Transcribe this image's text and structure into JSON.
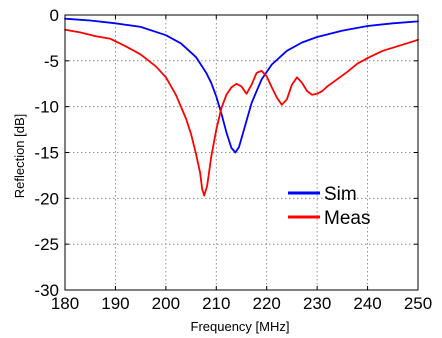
{
  "chart_data": {
    "type": "line",
    "title": "",
    "xlabel": "Frequency [MHz]",
    "ylabel": "Reflection [dB]",
    "xlim": [
      180,
      250
    ],
    "ylim": [
      -30,
      0
    ],
    "xticks": [
      180,
      190,
      200,
      210,
      220,
      230,
      240,
      250
    ],
    "yticks": [
      0,
      -5,
      -10,
      -15,
      -20,
      -25,
      -30
    ],
    "grid": true,
    "legend_position": "lower-right",
    "series": [
      {
        "name": "Sim",
        "color": "#0000ff",
        "x": [
          180,
          185,
          190,
          195,
          200,
          203,
          206,
          208,
          209,
          210,
          211,
          212,
          213,
          213.8,
          214.5,
          215.5,
          217,
          219,
          221,
          224,
          227,
          230,
          235,
          240,
          245,
          250
        ],
        "y": [
          -0.4,
          -0.6,
          -0.9,
          -1.3,
          -2.2,
          -3.1,
          -4.6,
          -6.3,
          -7.4,
          -8.9,
          -10.7,
          -12.8,
          -14.5,
          -15.0,
          -14.4,
          -12.5,
          -9.6,
          -7.0,
          -5.4,
          -3.9,
          -3.0,
          -2.4,
          -1.7,
          -1.2,
          -0.9,
          -0.7
        ]
      },
      {
        "name": "Meas",
        "color": "#ff0000",
        "x": [
          180,
          183,
          186,
          189,
          192,
          195,
          198,
          200,
          202,
          204,
          205,
          206,
          206.8,
          207.2,
          207.6,
          208.2,
          209,
          210,
          211,
          212,
          213,
          214,
          215,
          216,
          217,
          218,
          219,
          220,
          221,
          222,
          223,
          224,
          225,
          226,
          227,
          228,
          229,
          230,
          231,
          232,
          233,
          234,
          236,
          238,
          240,
          243,
          246,
          250
        ],
        "y": [
          -1.6,
          -1.9,
          -2.3,
          -2.6,
          -3.4,
          -4.3,
          -5.6,
          -6.8,
          -8.7,
          -11.3,
          -13.0,
          -15.2,
          -17.2,
          -19.0,
          -19.7,
          -18.6,
          -15.5,
          -12.5,
          -10.2,
          -8.7,
          -7.9,
          -7.5,
          -7.8,
          -8.6,
          -7.6,
          -6.3,
          -6.1,
          -6.7,
          -7.9,
          -9.0,
          -9.8,
          -9.2,
          -7.6,
          -6.8,
          -7.4,
          -8.3,
          -8.7,
          -8.6,
          -8.3,
          -7.8,
          -7.4,
          -7.0,
          -6.2,
          -5.3,
          -4.7,
          -3.9,
          -3.4,
          -2.7
        ]
      }
    ]
  }
}
